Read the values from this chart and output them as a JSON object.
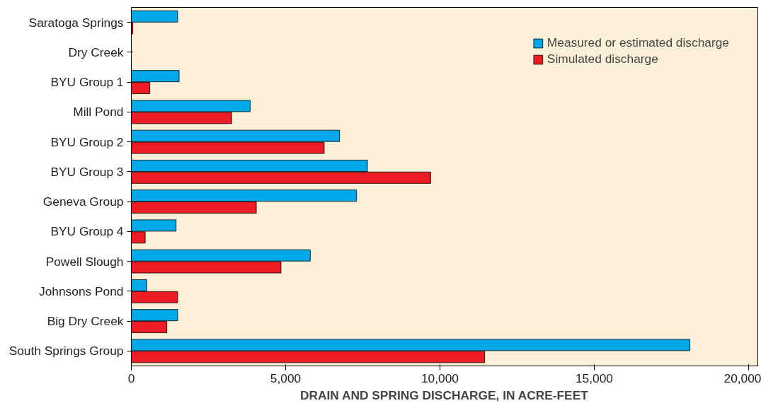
{
  "chart_data": {
    "type": "bar",
    "orientation": "horizontal",
    "xlabel": "DRAIN AND SPRING DISCHARGE, IN ACRE-FEET",
    "categories": [
      "Saratoga Springs",
      "Dry Creek",
      "BYU Group 1",
      "Mill Pond",
      "BYU Group 2",
      "BYU Group 3",
      "Geneva Group",
      "BYU Group 4",
      "Powell Slough",
      "Johnsons Pond",
      "Big Dry Creek",
      "South Springs Group"
    ],
    "series": [
      {
        "name": "Measured or estimated discharge",
        "color": "#00a8e8",
        "values": [
          1500,
          null,
          1550,
          3850,
          6750,
          7650,
          7300,
          1450,
          5800,
          500,
          1500,
          18100
        ]
      },
      {
        "name": "Simulated discharge",
        "color": "#ec1c24",
        "values": [
          50,
          null,
          600,
          3250,
          6250,
          9700,
          4050,
          450,
          4850,
          1500,
          1150,
          11450
        ]
      }
    ],
    "xlim": [
      0,
      20300
    ],
    "xticks": [
      0,
      {
        "value": 5000,
        "label": "5,000"
      },
      {
        "value": 10000,
        "label": "10,000"
      },
      {
        "value": 15000,
        "label": "15,000"
      },
      {
        "value": 20000,
        "label": "20,000"
      }
    ],
    "grid": false,
    "legend": "top right"
  }
}
